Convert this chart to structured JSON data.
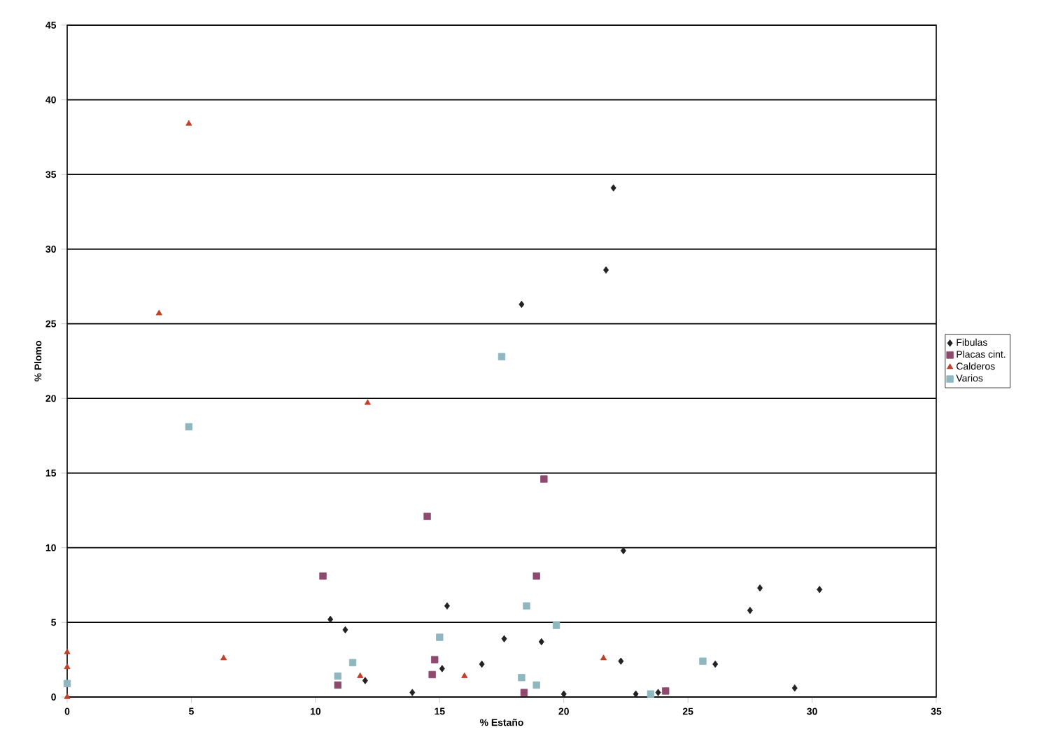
{
  "chart_data": {
    "type": "scatter",
    "xlabel": "% Estaño",
    "ylabel": "% Plomo",
    "xlim": [
      0,
      35
    ],
    "xticks": [
      0,
      5,
      10,
      15,
      20,
      25,
      30,
      35
    ],
    "ylim": [
      0,
      45
    ],
    "yticks": [
      0,
      5,
      10,
      15,
      20,
      25,
      30,
      35,
      40,
      45
    ],
    "grid": "y",
    "legend": "right",
    "series": [
      {
        "name": "Fibulas",
        "color": "#222222",
        "marker": "diamond",
        "x": [
          22.0,
          21.7,
          18.3,
          10.6,
          11.2,
          12.0,
          13.9,
          15.3,
          15.1,
          16.7,
          17.6,
          19.1,
          20.0,
          22.4,
          22.3,
          22.9,
          23.8,
          26.1,
          27.5,
          27.9,
          30.3,
          29.3
        ],
        "values": [
          34.1,
          28.6,
          26.3,
          5.2,
          4.5,
          1.1,
          0.3,
          6.1,
          1.9,
          2.2,
          3.9,
          3.7,
          0.2,
          9.8,
          2.4,
          0.2,
          0.3,
          2.2,
          5.8,
          7.3,
          7.2,
          0.6
        ]
      },
      {
        "name": "Placas cint.",
        "color": "#8e4a6e",
        "marker": "square",
        "x": [
          10.3,
          10.9,
          14.5,
          14.8,
          14.7,
          18.4,
          19.2,
          18.9,
          24.1
        ],
        "values": [
          8.1,
          0.8,
          12.1,
          2.5,
          1.5,
          0.3,
          14.6,
          8.1,
          0.4
        ]
      },
      {
        "name": "Calderos",
        "color": "#c0402a",
        "marker": "triangle",
        "x": [
          4.9,
          3.7,
          12.1,
          0,
          0,
          0,
          6.3,
          11.8,
          16.0,
          21.6
        ],
        "values": [
          38.4,
          25.7,
          19.7,
          3.0,
          2.0,
          0,
          2.6,
          1.4,
          1.4,
          2.6
        ]
      },
      {
        "name": "Varios",
        "color": "#8fb7c0",
        "marker": "square",
        "x": [
          17.5,
          4.9,
          0,
          10.9,
          11.5,
          15.0,
          18.3,
          18.5,
          18.9,
          19.7,
          23.5,
          25.6
        ],
        "values": [
          22.8,
          18.1,
          0.9,
          1.4,
          2.3,
          4.0,
          1.3,
          6.1,
          0.8,
          4.8,
          0.2,
          2.4
        ]
      }
    ]
  }
}
